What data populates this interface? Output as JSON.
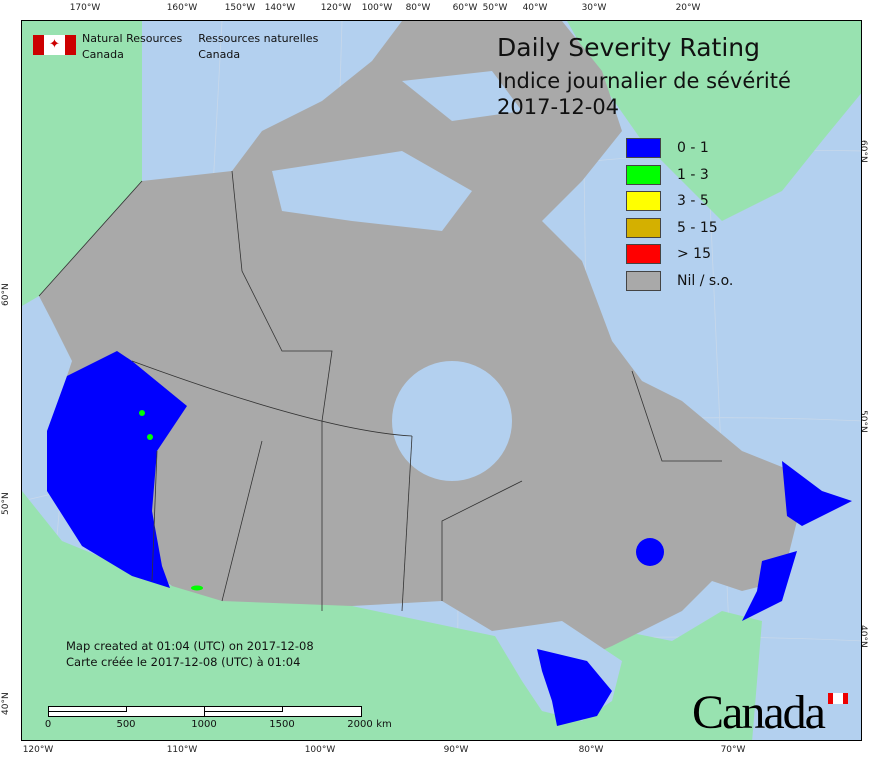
{
  "title": {
    "en": "Daily Severity Rating",
    "fr": "Indice journalier de sévérité",
    "date": "2017-12-04"
  },
  "agency": {
    "en_line1": "Natural Resources",
    "en_line2": "Canada",
    "fr_line1": "Ressources naturelles",
    "fr_line2": "Canada"
  },
  "legend": [
    {
      "label": "0 - 1",
      "color": "#0000ff"
    },
    {
      "label": "1 - 3",
      "color": "#00ff00"
    },
    {
      "label": "3 - 5",
      "color": "#ffff00"
    },
    {
      "label": "5 - 15",
      "color": "#d4b000"
    },
    {
      "label": "> 15",
      "color": "#ff0000"
    },
    {
      "label": "Nil / s.o.",
      "color": "#a9a9a9"
    }
  ],
  "created": {
    "en": "Map created at 01:04 (UTC) on 2017-12-08",
    "fr": "Carte créée le 2017-12-08 (UTC) à 01:04"
  },
  "scale": {
    "labels": [
      "0",
      "500",
      "1000",
      "1500",
      "2000"
    ],
    "unit": "km"
  },
  "wordmark": "Canada",
  "axes": {
    "top": [
      "170°W",
      "160°W",
      "150°W",
      "140°W",
      "120°W",
      "100°W",
      "80°W",
      "60°W",
      "50°W",
      "40°W",
      "30°W",
      "20°W"
    ],
    "bottom": [
      "120°W",
      "110°W",
      "100°W",
      "90°W",
      "80°W",
      "70°W"
    ],
    "left": [
      "60°N",
      "50°N",
      "40°N"
    ],
    "right": [
      "60°N",
      "50°N",
      "40°N"
    ]
  },
  "colors": {
    "water": "#b3d0ef",
    "foreign_land": "#98e2b0",
    "no_data": "#a9a9a9",
    "low": "#0000ff"
  }
}
